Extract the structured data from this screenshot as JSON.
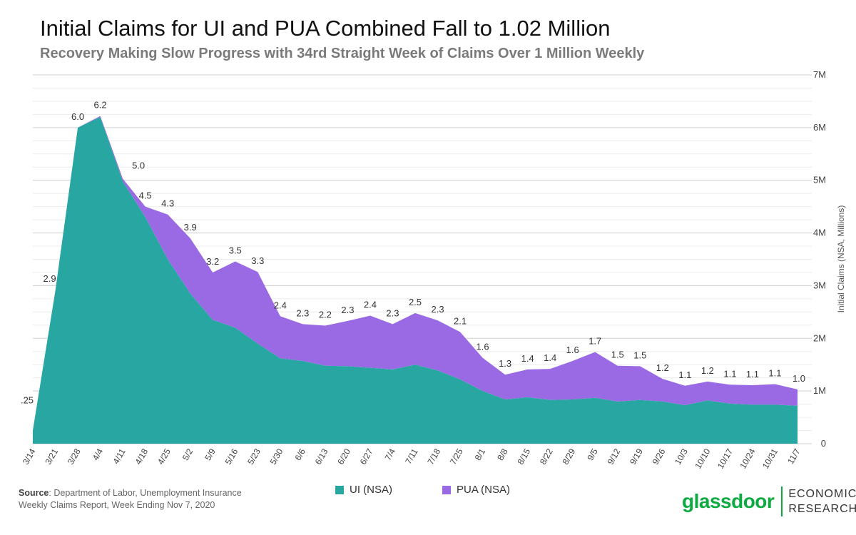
{
  "title": "Initial Claims for UI and PUA Combined Fall to 1.02 Million",
  "subtitle": "Recovery Making Slow Progress with 34rd Straight Week of Claims Over 1 Million Weekly",
  "source": {
    "label": "Source",
    "text": ": Department of Labor, Unemployment Insurance Weekly Claims Report, Week Ending Nov 7, 2020"
  },
  "brand": {
    "logo": "glassdoor",
    "line1": "ECONOMIC",
    "line2": "RESEARCH"
  },
  "colors": {
    "ui": "#27a6a2",
    "pua": "#9a6ae4",
    "grid": "#dcdcdc"
  },
  "chart_data": {
    "type": "area",
    "stacked": true,
    "ylabel": "Initial Claims (NSA, Millions)",
    "ylim": [
      0,
      7000000
    ],
    "yticks": [
      {
        "value": 0,
        "label": "0"
      },
      {
        "value": 1000000,
        "label": "1M"
      },
      {
        "value": 2000000,
        "label": "2M"
      },
      {
        "value": 3000000,
        "label": "3M"
      },
      {
        "value": 4000000,
        "label": "4M"
      },
      {
        "value": 5000000,
        "label": "5M"
      },
      {
        "value": 6000000,
        "label": "6M"
      },
      {
        "value": 7000000,
        "label": "7M"
      }
    ],
    "grid": true,
    "legend": "bottom",
    "categories": [
      "3/14",
      "3/21",
      "3/28",
      "4/4",
      "4/11",
      "4/18",
      "4/25",
      "5/2",
      "5/9",
      "5/16",
      "5/23",
      "5/30",
      "6/6",
      "6/13",
      "6/20",
      "6/27",
      "7/4",
      "7/11",
      "7/18",
      "7/25",
      "8/1",
      "8/8",
      "8/15",
      "8/22",
      "8/29",
      "9/5",
      "9/12",
      "9/19",
      "9/26",
      "10/3",
      "10/10",
      "10/17",
      "10/24",
      "10/31",
      "11/7"
    ],
    "series": [
      {
        "name": "UI (NSA)",
        "values": [
          0.25,
          2.9,
          6.0,
          6.2,
          4.98,
          4.3,
          3.5,
          2.85,
          2.35,
          2.2,
          1.9,
          1.62,
          1.57,
          1.48,
          1.47,
          1.44,
          1.41,
          1.5,
          1.39,
          1.22,
          1.0,
          0.84,
          0.88,
          0.83,
          0.84,
          0.87,
          0.8,
          0.83,
          0.8,
          0.73,
          0.82,
          0.76,
          0.74,
          0.74,
          0.72
        ]
      },
      {
        "name": "PUA (NSA)",
        "values": [
          0,
          0,
          0,
          0.02,
          0.05,
          0.2,
          0.85,
          1.05,
          0.9,
          1.26,
          1.36,
          0.8,
          0.7,
          0.76,
          0.86,
          0.99,
          0.86,
          0.98,
          0.95,
          0.9,
          0.63,
          0.47,
          0.53,
          0.59,
          0.73,
          0.87,
          0.68,
          0.64,
          0.43,
          0.37,
          0.36,
          0.36,
          0.37,
          0.39,
          0.31
        ]
      }
    ],
    "data_labels": [
      ".25",
      "2.9",
      "6.0",
      "6.2",
      "5.0",
      "4.5",
      "4.3",
      "3.9",
      "3.2",
      "3.5",
      "3.3",
      "2.4",
      "2.3",
      "2.2",
      "2.3",
      "2.4",
      "2.3",
      "2.5",
      "2.3",
      "2.1",
      "1.6",
      "1.3",
      "1.4",
      "1.4",
      "1.6",
      "1.7",
      "1.5",
      "1.5",
      "1.2",
      "1.1",
      "1.2",
      "1.1",
      "1.1",
      "1.1",
      "1.0"
    ]
  }
}
